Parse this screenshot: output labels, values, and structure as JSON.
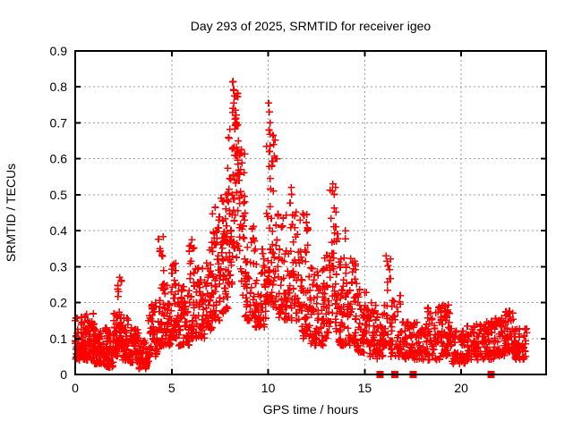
{
  "chart_data": {
    "type": "scatter",
    "title": "Day 293 of 2025, SRMTID for receiver igeo",
    "xlabel": "GPS time / hours",
    "ylabel": "SRMTID / TECUs",
    "xlim": [
      0,
      24.4
    ],
    "ylim": [
      0,
      0.9
    ],
    "xticks": [
      0,
      5,
      10,
      15,
      20
    ],
    "xtick_labels": [
      "0",
      "5",
      "10",
      "15",
      "20"
    ],
    "yticks": [
      0,
      0.1,
      0.2,
      0.3,
      0.4,
      0.5,
      0.6,
      0.7,
      0.8,
      0.9
    ],
    "ytick_labels": [
      "0",
      "0.1",
      "0.2",
      "0.3",
      "0.4",
      "0.5",
      "0.6",
      "0.7",
      "0.8",
      "0.9"
    ],
    "grid": true,
    "grid_color": "#9a9a9a",
    "frame_color": "#000000",
    "marker": "plus",
    "marker_color": "#ff0000",
    "marker_size": 8,
    "seed": 293,
    "density_bins": [
      [
        0.0,
        0.5,
        0.04,
        0.16,
        60,
        1.4
      ],
      [
        0.5,
        1.0,
        0.04,
        0.17,
        60,
        1.4
      ],
      [
        1.0,
        1.5,
        0.03,
        0.13,
        55,
        1.3
      ],
      [
        1.5,
        2.0,
        0.02,
        0.13,
        55,
        1.3
      ],
      [
        2.0,
        2.2,
        0.05,
        0.18,
        30,
        1.3
      ],
      [
        2.2,
        2.45,
        0.07,
        0.27,
        35,
        1.6
      ],
      [
        2.45,
        2.8,
        0.04,
        0.16,
        40,
        1.3
      ],
      [
        2.8,
        3.3,
        0.03,
        0.13,
        50,
        1.3
      ],
      [
        3.3,
        3.8,
        0.015,
        0.1,
        45,
        1.3
      ],
      [
        3.8,
        4.3,
        0.05,
        0.21,
        50,
        1.5
      ],
      [
        4.3,
        4.6,
        0.08,
        0.38,
        35,
        1.8
      ],
      [
        4.6,
        5.0,
        0.08,
        0.26,
        40,
        1.5
      ],
      [
        5.0,
        5.3,
        0.1,
        0.31,
        30,
        1.6
      ],
      [
        5.3,
        5.9,
        0.08,
        0.25,
        55,
        1.5
      ],
      [
        5.9,
        6.2,
        0.1,
        0.375,
        35,
        1.7
      ],
      [
        6.2,
        6.7,
        0.1,
        0.3,
        45,
        1.5
      ],
      [
        6.7,
        7.1,
        0.12,
        0.37,
        40,
        1.5
      ],
      [
        7.1,
        7.5,
        0.15,
        0.47,
        45,
        1.5
      ],
      [
        7.5,
        7.9,
        0.17,
        0.5,
        45,
        1.4
      ],
      [
        7.9,
        8.15,
        0.25,
        0.7,
        35,
        1.3
      ],
      [
        8.15,
        8.45,
        0.3,
        0.82,
        45,
        1.2
      ],
      [
        8.45,
        8.8,
        0.22,
        0.63,
        40,
        1.4
      ],
      [
        8.8,
        9.3,
        0.15,
        0.42,
        45,
        1.5
      ],
      [
        9.3,
        9.9,
        0.13,
        0.35,
        50,
        1.5
      ],
      [
        9.9,
        10.15,
        0.2,
        0.76,
        30,
        2.0
      ],
      [
        10.15,
        10.5,
        0.18,
        0.66,
        35,
        2.0
      ],
      [
        10.5,
        11.1,
        0.15,
        0.45,
        50,
        1.5
      ],
      [
        11.1,
        11.7,
        0.15,
        0.52,
        50,
        1.6
      ],
      [
        11.7,
        12.2,
        0.1,
        0.45,
        50,
        1.8
      ],
      [
        12.2,
        12.9,
        0.08,
        0.3,
        60,
        1.4
      ],
      [
        12.9,
        13.2,
        0.1,
        0.35,
        30,
        1.5
      ],
      [
        13.2,
        13.55,
        0.12,
        0.53,
        35,
        1.7
      ],
      [
        13.55,
        14.1,
        0.08,
        0.4,
        50,
        1.7
      ],
      [
        14.1,
        14.6,
        0.08,
        0.33,
        45,
        1.6
      ],
      [
        14.6,
        15.1,
        0.06,
        0.25,
        45,
        1.5
      ],
      [
        15.1,
        15.6,
        0.05,
        0.2,
        40,
        1.4
      ],
      [
        15.6,
        16.0,
        0.04,
        0.18,
        35,
        1.4
      ],
      [
        16.0,
        16.35,
        0.08,
        0.33,
        30,
        1.7
      ],
      [
        16.35,
        16.9,
        0.05,
        0.22,
        40,
        1.5
      ],
      [
        16.9,
        17.5,
        0.04,
        0.15,
        45,
        1.3
      ],
      [
        17.5,
        18.2,
        0.04,
        0.15,
        50,
        1.3
      ],
      [
        18.2,
        19.0,
        0.04,
        0.19,
        60,
        1.4
      ],
      [
        19.0,
        19.4,
        0.05,
        0.2,
        40,
        1.5
      ],
      [
        19.4,
        20.2,
        0.03,
        0.13,
        60,
        1.3
      ],
      [
        20.2,
        21.0,
        0.04,
        0.14,
        60,
        1.3
      ],
      [
        21.0,
        21.7,
        0.04,
        0.15,
        55,
        1.3
      ],
      [
        21.7,
        22.3,
        0.05,
        0.16,
        50,
        1.3
      ],
      [
        22.3,
        22.75,
        0.06,
        0.18,
        40,
        1.4
      ],
      [
        22.75,
        23.4,
        0.04,
        0.13,
        50,
        1.3
      ]
    ],
    "highlight_points": [
      [
        2.3,
        0.27
      ],
      [
        4.55,
        0.383
      ],
      [
        6.05,
        0.375
      ],
      [
        7.25,
        0.465
      ],
      [
        7.8,
        0.5
      ],
      [
        8.18,
        0.815
      ],
      [
        8.2,
        0.79
      ],
      [
        8.25,
        0.775
      ],
      [
        8.22,
        0.755
      ],
      [
        8.3,
        0.735
      ],
      [
        8.27,
        0.71
      ],
      [
        8.35,
        0.7
      ],
      [
        10.02,
        0.755
      ],
      [
        10.06,
        0.73
      ],
      [
        10.1,
        0.7
      ],
      [
        10.05,
        0.68
      ],
      [
        10.25,
        0.665
      ],
      [
        10.28,
        0.64
      ],
      [
        10.45,
        0.6
      ],
      [
        11.2,
        0.52
      ],
      [
        13.35,
        0.53
      ],
      [
        13.32,
        0.51
      ],
      [
        12.0,
        0.445
      ],
      [
        14.0,
        0.4
      ],
      [
        15.35,
        0.2
      ],
      [
        16.1,
        0.33
      ],
      [
        16.15,
        0.315
      ],
      [
        19.15,
        0.19
      ],
      [
        22.5,
        0.176
      ],
      [
        22.52,
        0.16
      ]
    ],
    "zero_squares": [
      15.8,
      16.55,
      17.5,
      21.55
    ]
  }
}
